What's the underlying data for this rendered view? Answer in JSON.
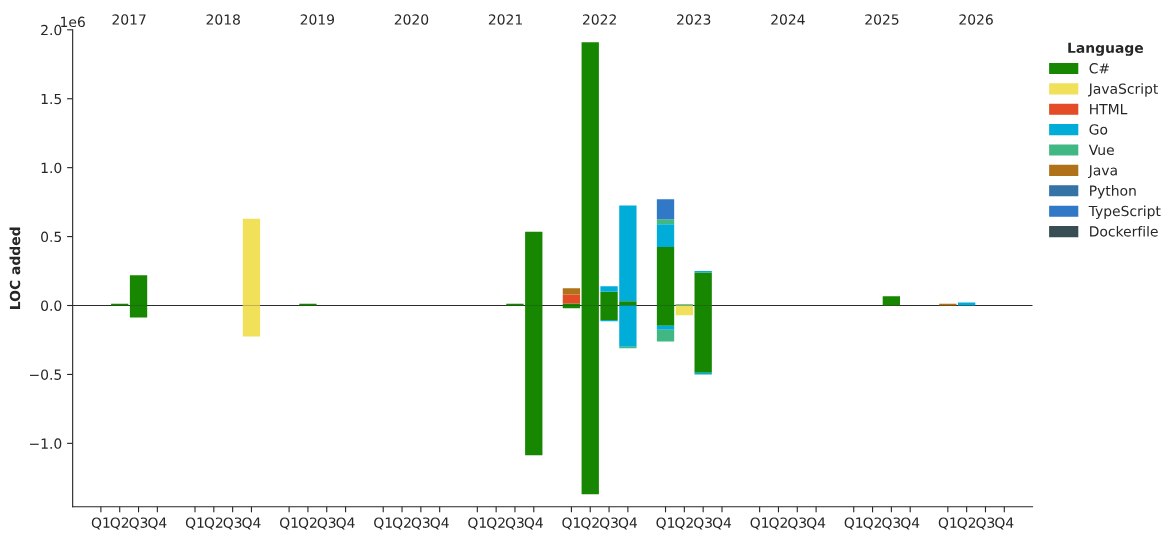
{
  "chart_data": {
    "type": "bar",
    "stacked": true,
    "ylabel": "LOC added",
    "legend_title": "Language",
    "legend": "top right",
    "annotations": [
      "1e6",
      "2017",
      "2018",
      "2019",
      "2020",
      "2021",
      "2022",
      "2023",
      "2024",
      "2025",
      "2026"
    ],
    "ylim": [
      -1.46,
      2.0
    ],
    "yticks": [
      {
        "value": -1,
        "label": "−1.0"
      },
      {
        "value": -0.5,
        "label": "−0.5"
      },
      {
        "value": 0,
        "label": "0.0"
      },
      0.5,
      {
        "value": 1,
        "label": "1.0"
      },
      1.5,
      {
        "value": 2,
        "label": "2.0"
      }
    ],
    "ref_lines": [
      {
        "axis": "y",
        "value": 0,
        "color": "#000000"
      }
    ],
    "categories": [
      "Q1",
      "Q2",
      "Q3",
      "Q4",
      null,
      "Q1",
      "Q2",
      "Q3",
      "Q4",
      null,
      "Q1",
      "Q2",
      "Q3",
      "Q4",
      null,
      "Q1",
      "Q2",
      "Q3",
      "Q4",
      null,
      "Q1",
      "Q2",
      "Q3",
      "Q4",
      null,
      "Q1",
      "Q2",
      "Q3",
      "Q4",
      null,
      "Q1",
      "Q2",
      "Q3",
      "Q4",
      null,
      "Q1",
      "Q2",
      "Q3",
      "Q4",
      null,
      "Q1",
      "Q2",
      "Q3",
      "Q4",
      null,
      "Q1",
      "Q2",
      "Q3",
      "Q4"
    ],
    "series": [
      {
        "name": "C#",
        "color": "#178600",
        "values": [
          null,
          0.012,
          0.22,
          null,
          null,
          null,
          null,
          null,
          null,
          null,
          null,
          0.012,
          null,
          null,
          null,
          null,
          null,
          null,
          null,
          null,
          null,
          null,
          0.012,
          0.535,
          null,
          0.015,
          1.91,
          0.1,
          0.03,
          null,
          0.425,
          null,
          0.24,
          null,
          null,
          null,
          null,
          null,
          null,
          null,
          null,
          null,
          0.068,
          null,
          null,
          null,
          null,
          null,
          null
        ]
      },
      {
        "name": "JavaScript",
        "color": "#f1e05a",
        "values": [
          null,
          null,
          null,
          null,
          null,
          null,
          null,
          null,
          0.63,
          null,
          null,
          null,
          null,
          null,
          null,
          null,
          null,
          null,
          null,
          null,
          null,
          null,
          null,
          null,
          null,
          null,
          null,
          null,
          null,
          null,
          null,
          null,
          null,
          null,
          null,
          null,
          null,
          null,
          null,
          null,
          null,
          null,
          null,
          null,
          null,
          null,
          null,
          null,
          null
        ]
      },
      {
        "name": "HTML",
        "color": "#e34c26",
        "values": [
          null,
          null,
          null,
          null,
          null,
          null,
          null,
          null,
          null,
          null,
          null,
          null,
          null,
          null,
          null,
          null,
          null,
          null,
          null,
          null,
          null,
          null,
          null,
          null,
          null,
          0.065,
          null,
          null,
          null,
          null,
          null,
          null,
          null,
          null,
          null,
          null,
          null,
          null,
          null,
          null,
          null,
          null,
          null,
          null,
          null,
          null,
          null,
          null,
          null
        ]
      },
      {
        "name": "Go",
        "color": "#00add8",
        "values": [
          null,
          null,
          null,
          null,
          null,
          null,
          null,
          null,
          null,
          null,
          null,
          null,
          null,
          null,
          null,
          null,
          null,
          null,
          null,
          null,
          null,
          null,
          null,
          null,
          null,
          null,
          null,
          0.04,
          0.695,
          null,
          0.165,
          null,
          0.01,
          null,
          null,
          null,
          null,
          null,
          null,
          null,
          null,
          null,
          null,
          null,
          null,
          null,
          0.022,
          null,
          null
        ]
      },
      {
        "name": "Vue",
        "color": "#41b883",
        "values": [
          null,
          null,
          null,
          null,
          null,
          null,
          null,
          null,
          null,
          null,
          null,
          null,
          null,
          null,
          null,
          null,
          null,
          null,
          null,
          null,
          null,
          null,
          null,
          null,
          null,
          null,
          null,
          null,
          null,
          null,
          0.035,
          0.01,
          null,
          null,
          null,
          null,
          null,
          null,
          null,
          null,
          null,
          null,
          null,
          null,
          null,
          null,
          null,
          null,
          null
        ]
      },
      {
        "name": "Java",
        "color": "#b07219",
        "values": [
          null,
          null,
          null,
          null,
          null,
          null,
          null,
          null,
          null,
          null,
          null,
          null,
          null,
          null,
          null,
          null,
          null,
          null,
          null,
          null,
          null,
          null,
          null,
          null,
          null,
          0.045,
          null,
          null,
          null,
          null,
          null,
          null,
          null,
          null,
          null,
          null,
          null,
          null,
          null,
          null,
          null,
          null,
          null,
          null,
          null,
          0.012,
          null,
          null,
          null
        ]
      },
      {
        "name": "Python",
        "color": "#3572a5",
        "values": [
          null,
          null,
          null,
          null,
          null,
          null,
          null,
          null,
          null,
          null,
          null,
          null,
          null,
          null,
          null,
          null,
          null,
          null,
          null,
          null,
          null,
          null,
          null,
          null,
          null,
          null,
          null,
          null,
          null,
          null,
          null,
          null,
          null,
          null,
          null,
          null,
          null,
          null,
          null,
          null,
          null,
          null,
          null,
          null,
          null,
          null,
          null,
          null,
          null
        ]
      },
      {
        "name": "TypeScript",
        "color": "#3178c6",
        "values": [
          null,
          null,
          null,
          null,
          null,
          null,
          null,
          null,
          null,
          null,
          null,
          null,
          null,
          null,
          null,
          null,
          null,
          null,
          null,
          null,
          null,
          null,
          null,
          null,
          null,
          null,
          null,
          null,
          null,
          null,
          0.145,
          null,
          null,
          null,
          null,
          null,
          null,
          null,
          null,
          null,
          null,
          null,
          null,
          null,
          null,
          null,
          null,
          null,
          null
        ]
      },
      {
        "name": "Dockerfile",
        "color": "#384d54",
        "values": [
          null,
          null,
          null,
          null,
          null,
          null,
          null,
          null,
          null,
          null,
          null,
          null,
          null,
          null,
          null,
          null,
          null,
          null,
          null,
          null,
          null,
          null,
          null,
          null,
          null,
          null,
          null,
          null,
          null,
          null,
          null,
          null,
          null,
          null,
          null,
          null,
          null,
          null,
          null,
          null,
          null,
          null,
          null,
          null,
          null,
          null,
          null,
          null,
          null
        ]
      },
      {
        "color": "#178600",
        "values": [
          null,
          null,
          -0.087,
          null,
          null,
          null,
          null,
          null,
          null,
          null,
          null,
          null,
          null,
          null,
          null,
          null,
          null,
          null,
          null,
          null,
          null,
          null,
          null,
          -1.087,
          null,
          -0.02,
          -1.37,
          -0.105,
          null,
          null,
          -0.146,
          null,
          -0.488,
          null,
          null,
          null,
          null,
          null,
          null,
          null,
          null,
          null,
          null,
          null,
          null,
          null,
          null,
          null,
          null
        ]
      },
      {
        "color": "#f1e05a",
        "values": [
          null,
          null,
          null,
          null,
          null,
          null,
          null,
          null,
          -0.225,
          null,
          null,
          null,
          null,
          null,
          null,
          null,
          null,
          null,
          null,
          null,
          null,
          null,
          null,
          null,
          null,
          null,
          null,
          null,
          null,
          null,
          null,
          -0.07,
          null,
          null,
          null,
          null,
          null,
          null,
          null,
          null,
          null,
          null,
          null,
          null,
          null,
          null,
          null,
          null,
          null
        ]
      },
      {
        "color": "#00add8",
        "values": [
          null,
          null,
          null,
          null,
          null,
          null,
          null,
          null,
          null,
          null,
          null,
          null,
          null,
          null,
          null,
          null,
          null,
          null,
          null,
          null,
          null,
          null,
          null,
          null,
          null,
          null,
          null,
          -0.01,
          -0.3,
          null,
          -0.03,
          null,
          -0.012,
          null,
          null,
          null,
          null,
          null,
          null,
          null,
          null,
          null,
          null,
          null,
          null,
          null,
          null,
          null,
          null
        ]
      },
      {
        "color": "#41b883",
        "values": [
          null,
          null,
          null,
          null,
          null,
          null,
          null,
          null,
          null,
          null,
          null,
          null,
          null,
          null,
          null,
          null,
          null,
          null,
          null,
          null,
          null,
          null,
          null,
          null,
          null,
          null,
          null,
          null,
          -0.01,
          null,
          -0.085,
          null,
          null,
          null,
          null,
          null,
          null,
          null,
          null,
          null,
          null,
          null,
          null,
          null,
          null,
          null,
          null,
          null,
          null
        ]
      }
    ]
  }
}
